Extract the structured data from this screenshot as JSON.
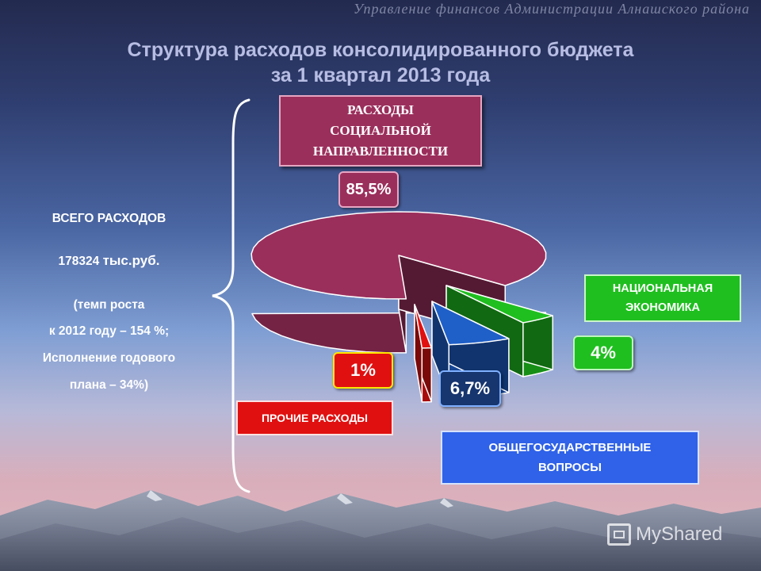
{
  "header": "Управление финансов Администрации Алнашского района",
  "title_line1": "Структура расходов консолидированного бюджета",
  "title_line2": "за 1 квартал 2013 года",
  "total": {
    "label": "ВСЕГО РАСХОДОВ",
    "value": "178324",
    "unit": "тыс.руб.",
    "growth_line1": "(темп роста",
    "growth_line2": "к 2012 году – 154 %;",
    "growth_line3": "Исполнение годового",
    "growth_line4": "плана – 34%)"
  },
  "chart_data": {
    "type": "pie",
    "title": "",
    "slices": [
      {
        "label": "РАСХОДЫ СОЦИАЛЬНОЙ НАПРАВЛЕННОСТИ",
        "value": 85.5,
        "display": "85,5%",
        "color": "#9b2f5c"
      },
      {
        "label": "НАЦИОНАЛЬНАЯ ЭКОНОМИКА",
        "value": 4,
        "display": "4%",
        "color": "#1fbf1f"
      },
      {
        "label": "ОБЩЕГОСУДАРСТВЕННЫЕ ВОПРОСЫ",
        "value": 6.7,
        "display": "6,7%",
        "color": "#1f5fc8"
      },
      {
        "label": "ПРОЧИЕ РАСХОДЫ",
        "value": 1,
        "display": "1%",
        "color": "#e01010"
      }
    ]
  },
  "labels": {
    "social_line1": "РАСХОДЫ",
    "social_line2": "СОЦИАЛЬНОЙ",
    "social_line3": "НАПРАВЛЕННОСТИ",
    "econ_line1": "НАЦИОНАЛЬНАЯ",
    "econ_line2": "ЭКОНОМИКА",
    "other": "ПРОЧИЕ РАСХОДЫ",
    "gov_line1": "ОБЩЕГОСУДАРСТВЕННЫЕ",
    "gov_line2": "ВОПРОСЫ"
  },
  "watermark": "MyShared"
}
